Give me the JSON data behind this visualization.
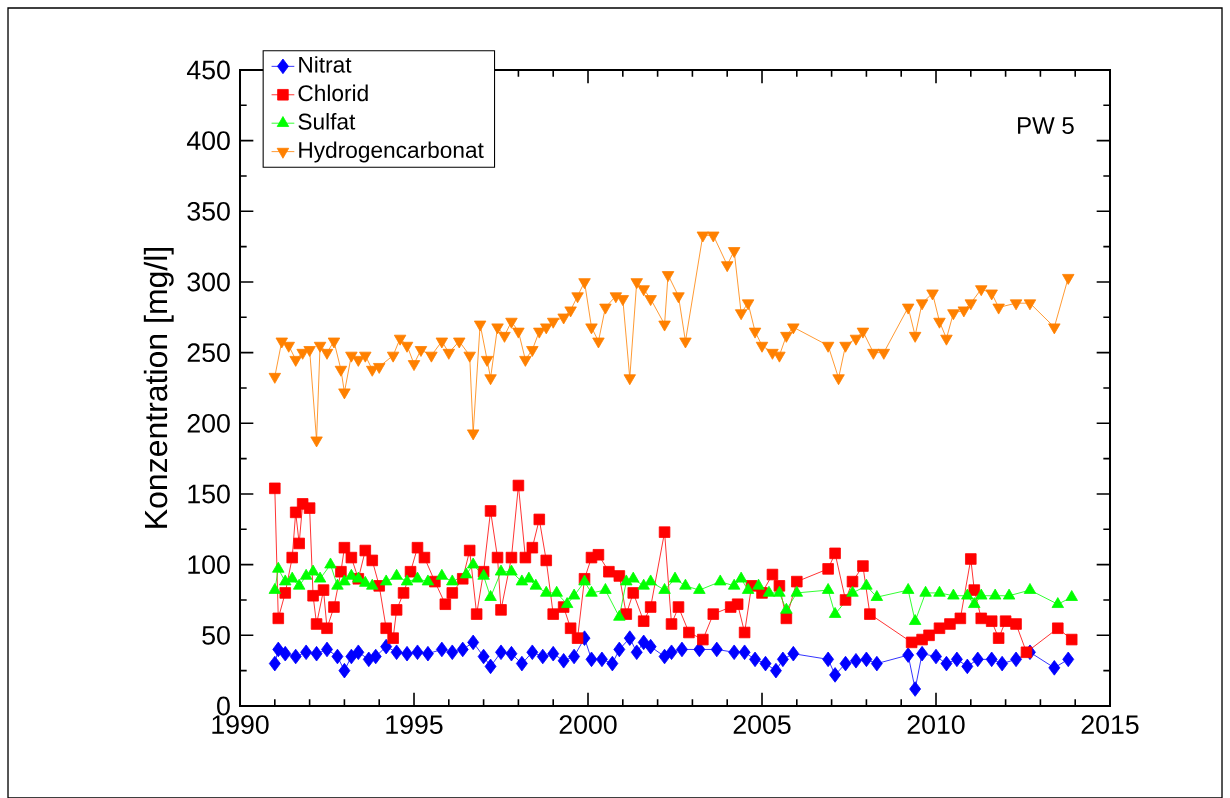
{
  "chart_data": {
    "type": "line",
    "ylabel": "Konzentration [mg/l]",
    "xlim": [
      1990,
      2015
    ],
    "xticks": [
      1990,
      1995,
      2000,
      2005,
      2010,
      2015
    ],
    "ylim": [
      0,
      450
    ],
    "yticks": [
      0,
      50,
      100,
      150,
      200,
      250,
      300,
      350,
      400,
      450
    ],
    "legend": "top left",
    "annotations": [
      "PW 5"
    ],
    "series": [
      {
        "name": "Nitrat",
        "color": "#0000ff",
        "marker": "diamond",
        "x": [
          1991.0,
          1991.1,
          1991.3,
          1991.6,
          1991.9,
          1992.2,
          1992.5,
          1992.8,
          1993.0,
          1993.2,
          1993.4,
          1993.7,
          1993.9,
          1994.2,
          1994.5,
          1994.8,
          1995.1,
          1995.4,
          1995.8,
          1996.1,
          1996.4,
          1996.7,
          1997.0,
          1997.2,
          1997.5,
          1997.8,
          1998.1,
          1998.4,
          1998.7,
          1999.0,
          1999.3,
          1999.6,
          1999.9,
          2000.1,
          2000.4,
          2000.7,
          2000.9,
          2001.2,
          2001.4,
          2001.6,
          2001.8,
          2002.2,
          2002.4,
          2002.7,
          2003.2,
          2003.7,
          2004.2,
          2004.5,
          2004.8,
          2005.1,
          2005.4,
          2005.6,
          2005.9,
          2006.9,
          2007.1,
          2007.4,
          2007.7,
          2008.0,
          2008.3,
          2009.2,
          2009.4,
          2009.6,
          2010.0,
          2010.3,
          2010.6,
          2010.9,
          2011.2,
          2011.6,
          2011.9,
          2012.3,
          2012.7,
          2013.4,
          2013.8
        ],
        "values": [
          30,
          40,
          37,
          35,
          38,
          37,
          40,
          35,
          25,
          35,
          38,
          33,
          35,
          42,
          38,
          37,
          38,
          37,
          40,
          38,
          40,
          45,
          35,
          28,
          38,
          37,
          30,
          38,
          35,
          37,
          32,
          35,
          48,
          33,
          33,
          30,
          40,
          48,
          38,
          45,
          42,
          35,
          38,
          40,
          40,
          40,
          38,
          38,
          33,
          30,
          25,
          33,
          37,
          33,
          22,
          30,
          32,
          33,
          30,
          36,
          12,
          37,
          35,
          30,
          33,
          28,
          33,
          33,
          30,
          33,
          38,
          27,
          33
        ]
      },
      {
        "name": "Chlorid",
        "color": "#ff0000",
        "marker": "square",
        "x": [
          1991.0,
          1991.1,
          1991.3,
          1991.5,
          1991.6,
          1991.7,
          1991.8,
          1992.0,
          1992.1,
          1992.2,
          1992.4,
          1992.5,
          1992.7,
          1992.9,
          1993.0,
          1993.2,
          1993.4,
          1993.6,
          1993.8,
          1994.0,
          1994.2,
          1994.4,
          1994.5,
          1994.7,
          1994.9,
          1995.1,
          1995.3,
          1995.6,
          1995.9,
          1996.1,
          1996.4,
          1996.6,
          1996.8,
          1997.0,
          1997.2,
          1997.4,
          1997.5,
          1997.8,
          1998.0,
          1998.2,
          1998.4,
          1998.6,
          1998.8,
          1999.0,
          1999.3,
          1999.5,
          1999.7,
          1999.9,
          2000.1,
          2000.3,
          2000.6,
          2000.9,
          2001.1,
          2001.3,
          2001.6,
          2001.8,
          2002.2,
          2002.4,
          2002.6,
          2002.9,
          2003.3,
          2003.6,
          2004.1,
          2004.3,
          2004.5,
          2004.7,
          2005.0,
          2005.3,
          2005.5,
          2005.7,
          2006.0,
          2006.9,
          2007.1,
          2007.4,
          2007.6,
          2007.9,
          2008.1,
          2009.3,
          2009.6,
          2009.8,
          2010.1,
          2010.4,
          2010.7,
          2011.0,
          2011.1,
          2011.3,
          2011.6,
          2011.8,
          2012.0,
          2012.3,
          2012.6,
          2013.5,
          2013.9
        ],
        "values": [
          154,
          62,
          80,
          105,
          137,
          115,
          143,
          140,
          78,
          58,
          82,
          55,
          70,
          95,
          112,
          105,
          90,
          110,
          103,
          85,
          55,
          48,
          68,
          80,
          95,
          112,
          105,
          88,
          72,
          80,
          90,
          110,
          65,
          95,
          138,
          105,
          68,
          105,
          156,
          105,
          112,
          132,
          103,
          65,
          70,
          55,
          48,
          90,
          105,
          107,
          95,
          92,
          65,
          80,
          60,
          70,
          123,
          58,
          70,
          52,
          47,
          65,
          70,
          72,
          52,
          85,
          80,
          93,
          85,
          62,
          88,
          97,
          108,
          75,
          88,
          99,
          65,
          45,
          47,
          50,
          55,
          58,
          62,
          104,
          82,
          62,
          60,
          48,
          60,
          58,
          38,
          55,
          47
        ]
      },
      {
        "name": "Sulfat",
        "color": "#00ff00",
        "marker": "triangle",
        "x": [
          1991.0,
          1991.1,
          1991.3,
          1991.5,
          1991.7,
          1991.9,
          1992.1,
          1992.3,
          1992.6,
          1992.8,
          1993.0,
          1993.2,
          1993.4,
          1993.6,
          1993.8,
          1994.2,
          1994.5,
          1994.8,
          1995.1,
          1995.4,
          1995.8,
          1996.1,
          1996.5,
          1996.7,
          1997.0,
          1997.2,
          1997.5,
          1997.8,
          1998.1,
          1998.3,
          1998.5,
          1998.8,
          1999.1,
          1999.4,
          1999.6,
          1999.9,
          2000.1,
          2000.5,
          2000.9,
          2001.1,
          2001.3,
          2001.6,
          2001.8,
          2002.2,
          2002.5,
          2002.8,
          2003.2,
          2003.8,
          2004.2,
          2004.4,
          2004.6,
          2004.9,
          2005.2,
          2005.5,
          2005.7,
          2006.0,
          2006.9,
          2007.1,
          2007.6,
          2008.0,
          2008.3,
          2009.2,
          2009.4,
          2009.7,
          2010.1,
          2010.5,
          2010.9,
          2011.1,
          2011.3,
          2011.7,
          2012.1,
          2012.7,
          2013.5,
          2013.9
        ],
        "values": [
          82,
          97,
          88,
          90,
          85,
          92,
          95,
          90,
          100,
          85,
          88,
          92,
          90,
          87,
          85,
          88,
          92,
          88,
          90,
          88,
          92,
          88,
          93,
          100,
          92,
          77,
          95,
          95,
          88,
          90,
          85,
          80,
          80,
          72,
          78,
          88,
          80,
          82,
          63,
          88,
          90,
          85,
          88,
          82,
          90,
          85,
          82,
          88,
          85,
          90,
          82,
          85,
          80,
          80,
          68,
          80,
          82,
          65,
          80,
          85,
          77,
          82,
          60,
          80,
          80,
          78,
          78,
          72,
          78,
          78,
          78,
          82,
          72,
          77
        ]
      },
      {
        "name": "Hydrogencarbonat",
        "color": "#ff8000",
        "marker": "triangle-down",
        "x": [
          1991.0,
          1991.2,
          1991.4,
          1991.6,
          1991.8,
          1992.0,
          1992.2,
          1992.3,
          1992.5,
          1992.7,
          1992.9,
          1993.0,
          1993.2,
          1993.4,
          1993.6,
          1993.8,
          1994.0,
          1994.4,
          1994.6,
          1994.8,
          1995.0,
          1995.2,
          1995.5,
          1995.8,
          1996.0,
          1996.3,
          1996.6,
          1996.7,
          1996.9,
          1997.1,
          1997.2,
          1997.4,
          1997.6,
          1997.8,
          1998.0,
          1998.2,
          1998.4,
          1998.6,
          1998.8,
          1999.0,
          1999.3,
          1999.5,
          1999.7,
          1999.9,
          2000.1,
          2000.3,
          2000.5,
          2000.8,
          2001.0,
          2001.2,
          2001.4,
          2001.6,
          2001.8,
          2002.2,
          2002.3,
          2002.6,
          2002.8,
          2003.3,
          2003.6,
          2004.0,
          2004.2,
          2004.4,
          2004.6,
          2004.8,
          2005.0,
          2005.3,
          2005.5,
          2005.7,
          2005.9,
          2006.9,
          2007.2,
          2007.4,
          2007.7,
          2007.9,
          2008.2,
          2008.5,
          2009.2,
          2009.4,
          2009.6,
          2009.9,
          2010.1,
          2010.3,
          2010.5,
          2010.8,
          2011.0,
          2011.3,
          2011.6,
          2011.8,
          2012.3,
          2012.7,
          2013.4,
          2013.8
        ],
        "values": [
          233,
          258,
          255,
          245,
          250,
          252,
          188,
          255,
          250,
          258,
          238,
          222,
          248,
          245,
          248,
          238,
          240,
          248,
          260,
          255,
          242,
          252,
          248,
          258,
          250,
          258,
          248,
          193,
          270,
          245,
          232,
          268,
          262,
          272,
          265,
          245,
          252,
          265,
          268,
          272,
          275,
          280,
          290,
          300,
          268,
          258,
          282,
          290,
          288,
          232,
          300,
          295,
          288,
          270,
          305,
          290,
          258,
          333,
          333,
          312,
          322,
          278,
          285,
          265,
          255,
          250,
          248,
          262,
          268,
          255,
          232,
          255,
          260,
          265,
          250,
          250,
          282,
          262,
          285,
          292,
          272,
          260,
          278,
          280,
          285,
          295,
          292,
          282,
          285,
          285,
          268,
          303
        ]
      }
    ]
  }
}
